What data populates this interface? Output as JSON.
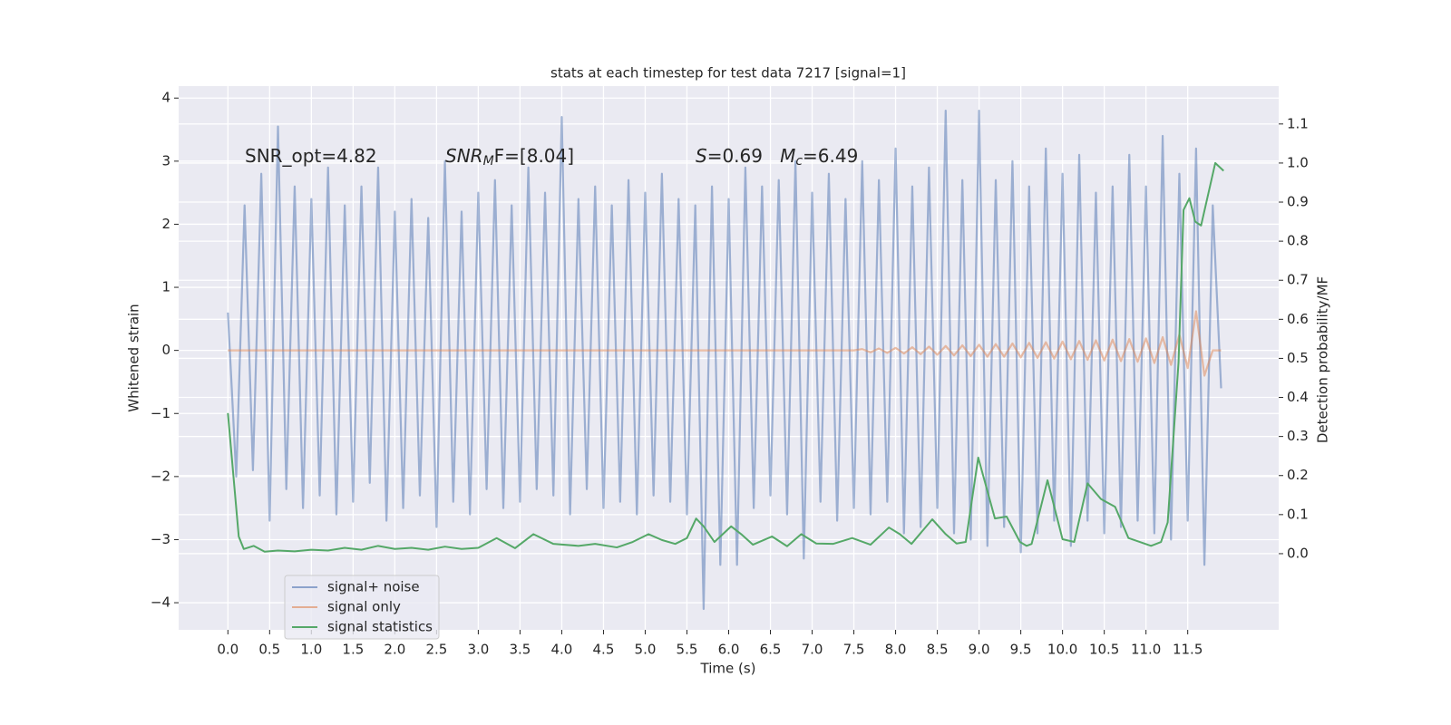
{
  "chart_data": {
    "type": "line",
    "title": "stats at each timestep for test data 7217 [signal=1]",
    "xlabel": "Time (s)",
    "ylabel": "Whitened strain",
    "y2label": "Detection probability/MF",
    "xlim": [
      -0.59,
      12.59
    ],
    "ylim": [
      -4.43,
      4.19
    ],
    "y2lim": [
      -0.195,
      1.197
    ],
    "xticks": [
      {
        "value": 0,
        "label": "0.0"
      },
      0.5,
      {
        "value": 1,
        "label": "1.0"
      },
      1.5,
      {
        "value": 2,
        "label": "2.0"
      },
      2.5,
      {
        "value": 3,
        "label": "3.0"
      },
      3.5,
      {
        "value": 4,
        "label": "4.0"
      },
      4.5,
      {
        "value": 5,
        "label": "5.0"
      },
      5.5,
      {
        "value": 6,
        "label": "6.0"
      },
      6.5,
      {
        "value": 7,
        "label": "7.0"
      },
      7.5,
      {
        "value": 8,
        "label": "8.0"
      },
      8.5,
      {
        "value": 9,
        "label": "9.0"
      },
      9.5,
      {
        "value": 10,
        "label": "10.0"
      },
      10.5,
      {
        "value": 11,
        "label": "11.0"
      },
      11.5
    ],
    "yticks": [
      {
        "value": -4,
        "label": "−4"
      },
      {
        "value": -3,
        "label": "−3"
      },
      {
        "value": -2,
        "label": "−2"
      },
      {
        "value": -1,
        "label": "−1"
      },
      0,
      1,
      2,
      3,
      4
    ],
    "y2ticks": [
      {
        "value": 0,
        "label": "0.0"
      },
      0.1,
      0.2,
      0.3,
      0.4,
      0.5,
      0.6,
      0.7,
      0.8,
      0.9,
      {
        "value": 1,
        "label": "1.0"
      },
      1.1
    ],
    "grid": true,
    "legend": "lower left",
    "annotations": [
      {
        "parts": [
          {
            "text": "SNR_opt=4.82",
            "style": "normal"
          }
        ]
      },
      {
        "parts": [
          {
            "text": "SNR",
            "style": "italic"
          },
          {
            "text": "M",
            "style": "italic-sub"
          },
          {
            "text": "F=[8.04]",
            "style": "normal"
          }
        ]
      },
      {
        "parts": [
          {
            "text": "S",
            "style": "italic"
          },
          {
            "text": "=0.69   ",
            "style": "normal"
          },
          {
            "text": "M",
            "style": "italic"
          },
          {
            "text": "c",
            "style": "italic-sub"
          },
          {
            "text": "=6.49",
            "style": "normal"
          }
        ]
      }
    ],
    "x": [
      0.0,
      0.1,
      0.2,
      0.3,
      0.4,
      0.5,
      0.6,
      0.7,
      0.8,
      0.9,
      1.0,
      1.1,
      1.2,
      1.3,
      1.4,
      1.5,
      1.6,
      1.7,
      1.8,
      1.9,
      2.0,
      2.1,
      2.2,
      2.3,
      2.4,
      2.5,
      2.6,
      2.7,
      2.8,
      2.9,
      3.0,
      3.1,
      3.2,
      3.3,
      3.4,
      3.5,
      3.6,
      3.7,
      3.8,
      3.9,
      4.0,
      4.1,
      4.2,
      4.3,
      4.4,
      4.5,
      4.6,
      4.7,
      4.8,
      4.9,
      5.0,
      5.1,
      5.2,
      5.3,
      5.4,
      5.5,
      5.6,
      5.7,
      5.8,
      5.9,
      6.0,
      6.1,
      6.2,
      6.3,
      6.4,
      6.5,
      6.6,
      6.7,
      6.8,
      6.9,
      7.0,
      7.1,
      7.2,
      7.3,
      7.4,
      7.5,
      7.6,
      7.7,
      7.8,
      7.9,
      8.0,
      8.1,
      8.2,
      8.3,
      8.4,
      8.5,
      8.6,
      8.7,
      8.8,
      8.9,
      9.0,
      9.1,
      9.2,
      9.3,
      9.4,
      9.5,
      9.6,
      9.7,
      9.8,
      9.9,
      10.0,
      10.1,
      10.2,
      10.3,
      10.4,
      10.5,
      10.6,
      10.7,
      10.8,
      10.9,
      11.0,
      11.1,
      11.2,
      11.3,
      11.4,
      11.5,
      11.6,
      11.7,
      11.8,
      11.9
    ],
    "series": [
      {
        "name": "signal+ noise",
        "color": "#4c72b0",
        "values": [
          0.6,
          -2.0,
          2.3,
          -1.9,
          2.8,
          -2.7,
          3.55,
          -2.2,
          2.6,
          -2.5,
          2.4,
          -2.3,
          2.9,
          -2.6,
          2.3,
          -2.4,
          2.6,
          -2.1,
          2.9,
          -2.7,
          2.2,
          -2.5,
          2.4,
          -2.3,
          2.1,
          -2.8,
          3.0,
          -2.4,
          2.2,
          -2.6,
          2.5,
          -2.2,
          2.7,
          -2.5,
          2.3,
          -2.4,
          2.9,
          -2.2,
          2.5,
          -2.3,
          3.7,
          -2.6,
          2.4,
          -2.2,
          2.6,
          -2.5,
          2.3,
          -2.4,
          2.7,
          -2.6,
          2.5,
          -2.3,
          2.8,
          -2.4,
          2.4,
          -2.6,
          2.3,
          -4.1,
          2.6,
          -3.4,
          2.4,
          -3.4,
          2.9,
          -2.5,
          2.6,
          -2.3,
          2.7,
          -2.6,
          3.0,
          -3.3,
          2.5,
          -2.4,
          2.8,
          -2.7,
          2.4,
          -2.5,
          3.0,
          -2.6,
          2.7,
          -2.4,
          3.2,
          -2.9,
          2.6,
          -2.8,
          2.9,
          -2.5,
          3.8,
          -2.9,
          2.7,
          -3.0,
          3.8,
          -3.1,
          2.7,
          -2.8,
          3.0,
          -3.2,
          2.6,
          -2.9,
          3.2,
          -2.7,
          2.8,
          -3.1,
          3.1,
          -2.7,
          2.5,
          -2.9,
          2.6,
          -2.8,
          3.1,
          -2.7,
          2.6,
          -2.9,
          3.4,
          -3.0,
          2.8,
          -2.7,
          3.2,
          -3.4,
          2.3,
          -0.6
        ]
      },
      {
        "name": "signal only",
        "color": "#dd8452",
        "values": [
          0,
          0,
          0,
          0,
          0,
          0,
          0,
          0,
          0,
          0,
          0,
          0,
          0,
          0,
          0,
          0,
          0,
          0,
          0,
          0,
          0,
          0,
          0,
          0,
          0,
          0,
          0,
          0,
          0,
          0,
          0,
          0,
          0,
          0,
          0,
          0,
          0,
          0,
          0,
          0,
          0,
          0,
          0,
          0,
          0,
          0,
          0,
          0,
          0,
          0,
          0,
          0,
          0,
          0,
          0,
          0,
          0,
          0,
          0,
          0,
          0,
          0,
          0,
          0,
          0,
          0,
          0,
          0,
          0,
          0,
          0,
          0,
          0,
          0,
          0,
          0,
          0.02,
          -0.03,
          0.03,
          -0.04,
          0.04,
          -0.05,
          0.05,
          -0.06,
          0.06,
          -0.07,
          0.07,
          -0.08,
          0.08,
          -0.09,
          0.09,
          -0.1,
          0.1,
          -0.1,
          0.11,
          -0.11,
          0.12,
          -0.12,
          0.13,
          -0.13,
          0.14,
          -0.14,
          0.15,
          -0.15,
          0.16,
          -0.16,
          0.17,
          -0.17,
          0.18,
          -0.18,
          0.19,
          -0.2,
          0.21,
          -0.23,
          0.25,
          -0.28,
          0.62,
          -0.4,
          0,
          0
        ]
      },
      {
        "name": "signal statistics",
        "color": "#55a868",
        "axis": "y2",
        "x": [
          0.0,
          0.13,
          0.19,
          0.31,
          0.44,
          0.6,
          0.8,
          1.0,
          1.2,
          1.4,
          1.6,
          1.8,
          2.0,
          2.2,
          2.4,
          2.6,
          2.8,
          3.0,
          3.22,
          3.44,
          3.66,
          3.9,
          4.2,
          4.4,
          4.66,
          4.85,
          5.04,
          5.2,
          5.36,
          5.5,
          5.61,
          5.7,
          5.83,
          6.03,
          6.15,
          6.29,
          6.52,
          6.7,
          6.87,
          7.05,
          7.25,
          7.48,
          7.7,
          7.92,
          8.05,
          8.19,
          8.44,
          8.6,
          8.73,
          8.84,
          8.99,
          9.19,
          9.33,
          9.49,
          9.57,
          9.63,
          9.82,
          10.0,
          10.14,
          10.3,
          10.46,
          10.63,
          10.79,
          11.06,
          11.18,
          11.26,
          11.39,
          11.45,
          11.52,
          11.59,
          11.66,
          11.83,
          11.93
        ],
        "values": [
          0.36,
          0.044,
          0.012,
          0.02,
          0.005,
          0.008,
          0.006,
          0.01,
          0.008,
          0.015,
          0.01,
          0.02,
          0.012,
          0.015,
          0.01,
          0.018,
          0.012,
          0.015,
          0.04,
          0.014,
          0.05,
          0.025,
          0.02,
          0.025,
          0.016,
          0.03,
          0.05,
          0.035,
          0.025,
          0.04,
          0.09,
          0.07,
          0.03,
          0.07,
          0.05,
          0.023,
          0.044,
          0.019,
          0.05,
          0.026,
          0.025,
          0.04,
          0.023,
          0.067,
          0.05,
          0.025,
          0.088,
          0.05,
          0.026,
          0.03,
          0.246,
          0.09,
          0.095,
          0.03,
          0.02,
          0.025,
          0.188,
          0.037,
          0.03,
          0.18,
          0.14,
          0.12,
          0.04,
          0.02,
          0.03,
          0.08,
          0.49,
          0.88,
          0.91,
          0.85,
          0.84,
          1.0,
          0.98
        ]
      }
    ]
  }
}
